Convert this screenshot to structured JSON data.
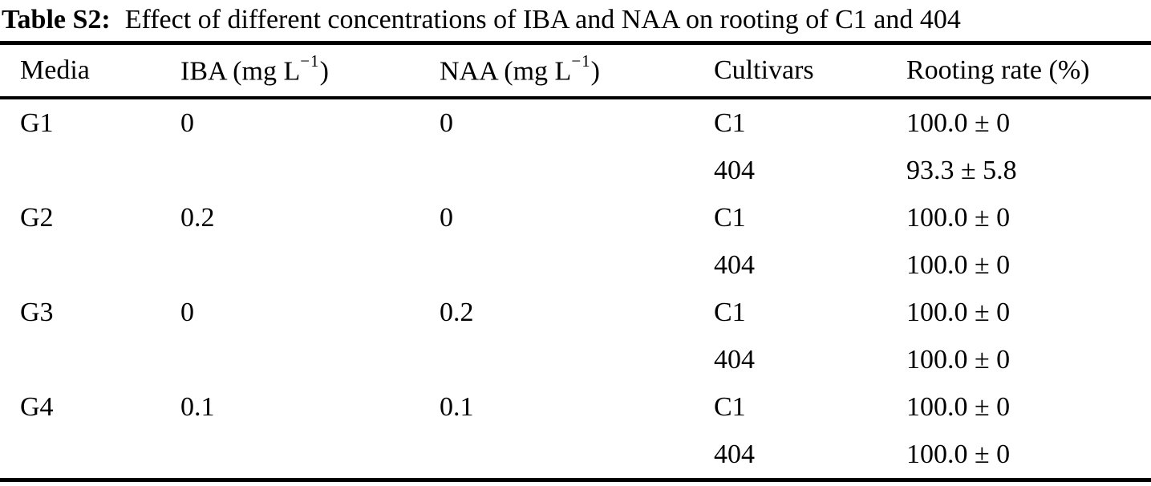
{
  "caption": {
    "label": "Table S2:",
    "text": "Effect of different concentrations of IBA and NAA on rooting of C1 and 404"
  },
  "table": {
    "columns": [
      {
        "label": "Media"
      },
      {
        "label": "IBA (mg L",
        "sup": "−1",
        "suffix": ")"
      },
      {
        "label": "NAA (mg L",
        "sup": "−1",
        "suffix": ")"
      },
      {
        "label": "Cultivars"
      },
      {
        "label": "Rooting rate (%)"
      }
    ],
    "rows": [
      {
        "media": "G1",
        "iba": "0",
        "naa": "0",
        "cultivar": "C1",
        "rooting_rate": "100.0 ± 0"
      },
      {
        "media": "",
        "iba": "",
        "naa": "",
        "cultivar": "404",
        "rooting_rate": "93.3 ± 5.8"
      },
      {
        "media": "G2",
        "iba": "0.2",
        "naa": "0",
        "cultivar": "C1",
        "rooting_rate": "100.0 ± 0"
      },
      {
        "media": "",
        "iba": "",
        "naa": "",
        "cultivar": "404",
        "rooting_rate": "100.0 ± 0"
      },
      {
        "media": "G3",
        "iba": "0",
        "naa": "0.2",
        "cultivar": "C1",
        "rooting_rate": "100.0 ± 0"
      },
      {
        "media": "",
        "iba": "",
        "naa": "",
        "cultivar": "404",
        "rooting_rate": "100.0 ± 0"
      },
      {
        "media": "G4",
        "iba": "0.1",
        "naa": "0.1",
        "cultivar": "C1",
        "rooting_rate": "100.0 ± 0"
      },
      {
        "media": "",
        "iba": "",
        "naa": "",
        "cultivar": "404",
        "rooting_rate": "100.0 ± 0"
      }
    ]
  },
  "colors": {
    "text": "#000000",
    "background": "#ffffff",
    "rule": "#000000"
  }
}
